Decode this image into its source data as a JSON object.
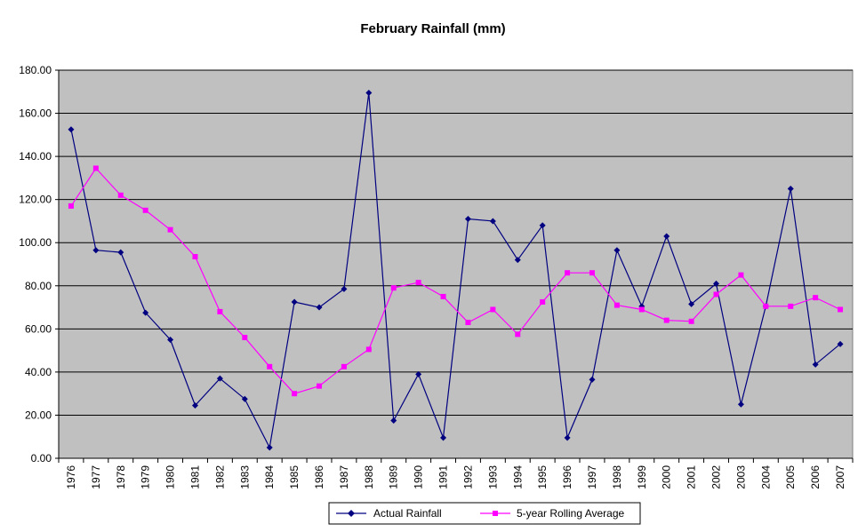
{
  "chart_data": {
    "type": "line",
    "title": "February Rainfall (mm)",
    "xlabel": "",
    "ylabel": "",
    "ylim": [
      0,
      180
    ],
    "ytick_step": 20,
    "ytick_format": "0.00",
    "grid": true,
    "plot_background": "#C0C0C0",
    "legend_position": "bottom",
    "categories": [
      "1976",
      "1977",
      "1978",
      "1979",
      "1980",
      "1981",
      "1982",
      "1983",
      "1984",
      "1985",
      "1986",
      "1987",
      "1988",
      "1989",
      "1990",
      "1991",
      "1992",
      "1993",
      "1994",
      "1995",
      "1996",
      "1997",
      "1998",
      "1999",
      "2000",
      "2001",
      "2002",
      "2003",
      "2004",
      "2005",
      "2006",
      "2007"
    ],
    "series": [
      {
        "name": "Actual Rainfall",
        "color": "#000080",
        "marker": "diamond",
        "values": [
          152.5,
          96.5,
          95.5,
          67.5,
          55.0,
          24.5,
          37.0,
          27.5,
          5.0,
          72.5,
          70.0,
          78.5,
          169.5,
          17.5,
          39.0,
          9.5,
          111.0,
          110.0,
          92.0,
          108.0,
          9.5,
          36.5,
          96.5,
          70.5,
          103.0,
          71.5,
          81.0,
          25.0,
          70.5,
          125.0,
          43.5,
          53.0
        ]
      },
      {
        "name": "5-year Rolling Average",
        "color": "#FF00FF",
        "marker": "square",
        "values": [
          117.0,
          134.5,
          122.0,
          115.0,
          106.0,
          93.5,
          68.0,
          56.0,
          42.5,
          30.0,
          33.5,
          42.5,
          50.5,
          79.0,
          81.5,
          75.0,
          63.0,
          69.0,
          57.5,
          72.5,
          86.0,
          86.0,
          71.0,
          69.0,
          64.0,
          63.5,
          76.0,
          85.0,
          70.5,
          70.5,
          74.5,
          69.0
        ]
      }
    ]
  }
}
